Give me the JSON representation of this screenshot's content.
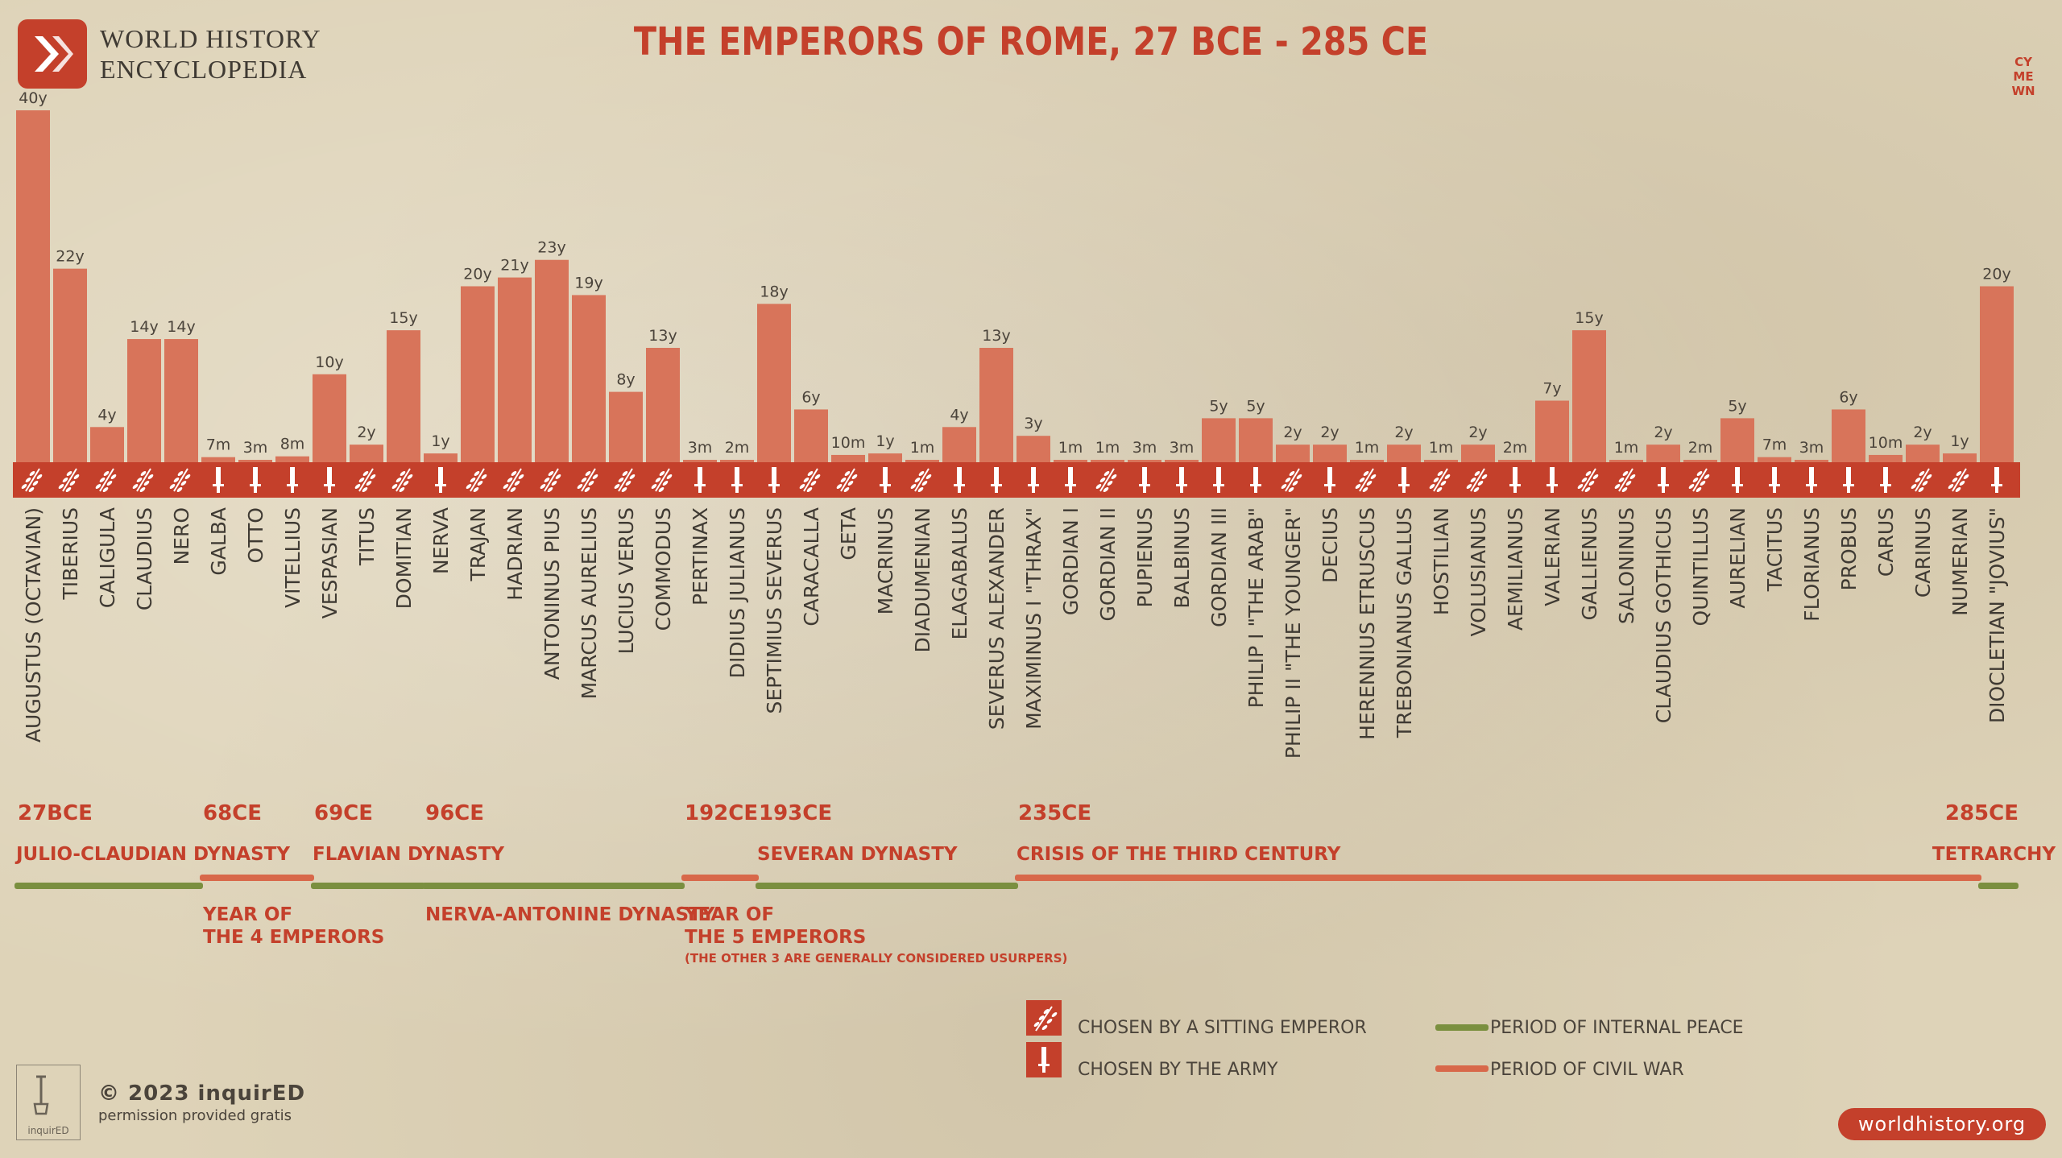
{
  "logo": {
    "line1": "WORLD HISTORY",
    "line2": "ENCYCLOPEDIA"
  },
  "corner_mark": [
    "CY",
    "ME",
    "WN"
  ],
  "colors": {
    "accent": "#c4402b",
    "bar": "#d8745a",
    "peace": "#7a8f3f",
    "war": "#d8684a",
    "text_dark": "#4b443b"
  },
  "chart_data": {
    "type": "bar",
    "title": "THE EMPERORS OF ROME, 27 BCE - 285 CE",
    "value_unit": "years",
    "categories": [
      "AUGUSTUS (OCTAVIAN)",
      "TIBERIUS",
      "CALIGULA",
      "CLAUDIUS",
      "NERO",
      "GALBA",
      "OTTO",
      "VITELLIUS",
      "VESPASIAN",
      "TITUS",
      "DOMITIAN",
      "NERVA",
      "TRAJAN",
      "HADRIAN",
      "ANTONINUS PIUS",
      "MARCUS AURELIUS",
      "LUCIUS VERUS",
      "COMMODUS",
      "PERTINAX",
      "DIDIUS JULIANUS",
      "SEPTIMIUS SEVERUS",
      "CARACALLA",
      "GETA",
      "MACRINUS",
      "DIADUMENIAN",
      "ELAGABALUS",
      "SEVERUS ALEXANDER",
      "MAXIMINUS I \"THRAX\"",
      "GORDIAN I",
      "GORDIAN II",
      "PUPIENUS",
      "BALBINUS",
      "GORDIAN III",
      "PHILIP I \"THE ARAB\"",
      "PHILIP II \"THE YOUNGER\"",
      "DECIUS",
      "HERENNIUS ETRUSCUS",
      "TREBONIANUS GALLUS",
      "HOSTILIAN",
      "VOLUSIANUS",
      "AEMILIANUS",
      "VALERIAN",
      "GALLIENUS",
      "SALONINUS",
      "CLAUDIUS GOTHICUS",
      "QUINTILLUS",
      "AURELIAN",
      "TACITUS",
      "FLORIANUS",
      "PROBUS",
      "CARUS",
      "CARINUS",
      "NUMERIAN",
      "DIOCLETIAN \"JOVIUS\""
    ],
    "values": [
      40,
      22,
      4,
      14,
      14,
      0.58,
      0.25,
      0.67,
      10,
      2,
      15,
      1,
      20,
      21,
      23,
      19,
      8,
      13,
      0.25,
      0.17,
      18,
      6,
      0.83,
      1,
      0.08,
      4,
      13,
      3,
      0.08,
      0.08,
      0.25,
      0.25,
      5,
      5,
      2,
      2,
      0.08,
      2,
      0.08,
      2,
      0.17,
      7,
      15,
      0.08,
      2,
      0.17,
      5,
      0.58,
      0.25,
      6,
      0.83,
      2,
      1,
      20
    ],
    "value_labels": [
      "40y",
      "22y",
      "4y",
      "14y",
      "14y",
      "7m",
      "3m",
      "8m",
      "10y",
      "2y",
      "15y",
      "1y",
      "20y",
      "21y",
      "23y",
      "19y",
      "8y",
      "13y",
      "3m",
      "2m",
      "18y",
      "6y",
      "10m",
      "1y",
      "1m",
      "4y",
      "13y",
      "3y",
      "1m",
      "1m",
      "3m",
      "3m",
      "5y",
      "5y",
      "2y",
      "2y",
      "1m",
      "2y",
      "1m",
      "2y",
      "2m",
      "7y",
      "15y",
      "1m",
      "2y",
      "2m",
      "5y",
      "7m",
      "3m",
      "6y",
      "10m",
      "2y",
      "1y",
      "20y"
    ],
    "chosen_by": [
      "emperor",
      "emperor",
      "emperor",
      "emperor",
      "emperor",
      "army",
      "army",
      "army",
      "army",
      "emperor",
      "emperor",
      "army",
      "emperor",
      "emperor",
      "emperor",
      "emperor",
      "emperor",
      "emperor",
      "army",
      "army",
      "army",
      "emperor",
      "emperor",
      "army",
      "emperor",
      "army",
      "army",
      "army",
      "army",
      "emperor",
      "army",
      "army",
      "army",
      "army",
      "emperor",
      "army",
      "emperor",
      "army",
      "emperor",
      "emperor",
      "army",
      "army",
      "emperor",
      "emperor",
      "army",
      "emperor",
      "army",
      "army",
      "army",
      "army",
      "army",
      "emperor",
      "emperor",
      "army"
    ],
    "ylim": [
      0,
      40
    ]
  },
  "timeline": {
    "dates": [
      {
        "text": "27BCE",
        "at": 0
      },
      {
        "text": "68CE",
        "at": 5
      },
      {
        "text": "69CE",
        "at": 8
      },
      {
        "text": "96CE",
        "at": 11
      },
      {
        "text": "192CE",
        "at": 18
      },
      {
        "text": "193CE",
        "at": 20
      },
      {
        "text": "235CE",
        "at": 27
      },
      {
        "text": "285CE",
        "at": 53
      }
    ],
    "periods": [
      {
        "name": "JULIO-CLAUDIAN DYNASTY",
        "kind": "peace",
        "from": 0,
        "to": 5,
        "label_pos": "above"
      },
      {
        "name": "YEAR OF THE 4 EMPERORS",
        "lines": [
          "YEAR OF",
          "THE 4 EMPERORS"
        ],
        "kind": "war",
        "from": 5,
        "to": 8,
        "label_pos": "below"
      },
      {
        "name": "FLAVIAN DYNASTY",
        "kind": "peace",
        "from": 8,
        "to": 11,
        "label_pos": "above"
      },
      {
        "name": "NERVA-ANTONINE DYNASTY",
        "kind": "peace",
        "from": 11,
        "to": 18,
        "label_pos": "below"
      },
      {
        "name": "YEAR OF THE 5 EMPERORS",
        "lines": [
          "YEAR OF",
          "THE 5 EMPERORS"
        ],
        "note": "(THE OTHER 3 ARE GENERALLY CONSIDERED USURPERS)",
        "kind": "war",
        "from": 18,
        "to": 20,
        "label_pos": "below"
      },
      {
        "name": "SEVERAN DYNASTY",
        "kind": "peace",
        "from": 20,
        "to": 27,
        "label_pos": "above"
      },
      {
        "name": "CRISIS OF THE THIRD CENTURY",
        "kind": "war",
        "from": 27,
        "to": 53,
        "label_pos": "above"
      },
      {
        "name": "TETRARCHY",
        "kind": "peace",
        "from": 53,
        "to": 54,
        "label_pos": "above"
      }
    ]
  },
  "legend": {
    "chosen_emperor": "CHOSEN BY A SITTING EMPEROR",
    "chosen_army": "CHOSEN BY THE ARMY",
    "peace": "PERIOD OF INTERNAL PEACE",
    "war": "PERIOD OF CIVIL WAR"
  },
  "footer": {
    "box_label": "inquirED",
    "copyright": "© 2023 inquirED",
    "permission": "permission provided gratis",
    "url": "worldhistory.org"
  }
}
